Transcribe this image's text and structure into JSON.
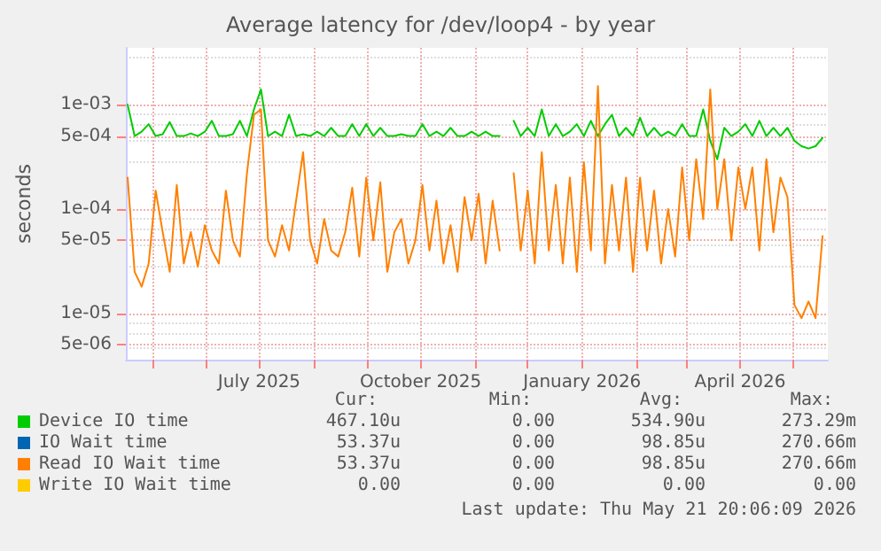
{
  "chart_data": {
    "type": "line",
    "title": "Average latency for /dev/loop4 - by year",
    "ylabel": "seconds",
    "log": "y",
    "grid": true,
    "legend": "bottom",
    "line_style": "solid",
    "xlim": [
      "2025-04-16",
      "2026-05-21"
    ],
    "xticks": [
      {
        "value": "2025-05-01",
        "label": null
      },
      {
        "value": "2025-06-01",
        "label": null
      },
      {
        "value": "2025-07-01",
        "label": "July 2025"
      },
      {
        "value": "2025-08-01",
        "label": null
      },
      {
        "value": "2025-09-01",
        "label": null
      },
      {
        "value": "2025-10-01",
        "label": "October 2025"
      },
      {
        "value": "2025-11-01",
        "label": null
      },
      {
        "value": "2025-12-01",
        "label": null
      },
      {
        "value": "2026-01-01",
        "label": "January 2026"
      },
      {
        "value": "2026-02-01",
        "label": null
      },
      {
        "value": "2026-03-01",
        "label": null
      },
      {
        "value": "2026-04-01",
        "label": "April 2026"
      },
      {
        "value": "2026-05-01",
        "label": null
      }
    ],
    "ylim": [
      3.6e-06,
      0.0035
    ],
    "yticks": [
      {
        "value": 5e-06,
        "label": "5e-06"
      },
      {
        "value": 1e-05,
        "label": "1e-05"
      },
      {
        "value": 5e-05,
        "label": "5e-05"
      },
      {
        "value": 0.0001,
        "label": "1e-04"
      },
      {
        "value": 0.0005,
        "label": "5e-04"
      },
      {
        "value": 0.001,
        "label": "1e-03"
      }
    ],
    "x": [
      "2025-04-17",
      "2025-04-21",
      "2025-04-25",
      "2025-04-29",
      "2025-05-03",
      "2025-05-07",
      "2025-05-11",
      "2025-05-15",
      "2025-05-19",
      "2025-05-23",
      "2025-05-27",
      "2025-05-31",
      "2025-06-04",
      "2025-06-08",
      "2025-06-12",
      "2025-06-16",
      "2025-06-20",
      "2025-06-24",
      "2025-06-28",
      "2025-07-02",
      "2025-07-06",
      "2025-07-10",
      "2025-07-14",
      "2025-07-18",
      "2025-07-22",
      "2025-07-26",
      "2025-07-30",
      "2025-08-03",
      "2025-08-07",
      "2025-08-11",
      "2025-08-15",
      "2025-08-19",
      "2025-08-23",
      "2025-08-27",
      "2025-08-31",
      "2025-09-04",
      "2025-09-08",
      "2025-09-12",
      "2025-09-16",
      "2025-09-20",
      "2025-09-24",
      "2025-09-28",
      "2025-10-02",
      "2025-10-06",
      "2025-10-10",
      "2025-10-14",
      "2025-10-18",
      "2025-10-22",
      "2025-10-26",
      "2025-10-30",
      "2025-11-03",
      "2025-11-07",
      "2025-11-11",
      "2025-11-15",
      "2025-11-19",
      "2025-11-23",
      "2025-11-27",
      "2025-12-01",
      "2025-12-05",
      "2025-12-09",
      "2025-12-13",
      "2025-12-17",
      "2025-12-21",
      "2025-12-25",
      "2025-12-29",
      "2026-01-02",
      "2026-01-06",
      "2026-01-10",
      "2026-01-14",
      "2026-01-18",
      "2026-01-22",
      "2026-01-26",
      "2026-01-30",
      "2026-02-03",
      "2026-02-07",
      "2026-02-11",
      "2026-02-15",
      "2026-02-19",
      "2026-02-23",
      "2026-02-27",
      "2026-03-03",
      "2026-03-07",
      "2026-03-11",
      "2026-03-15",
      "2026-03-19",
      "2026-03-23",
      "2026-03-27",
      "2026-03-31",
      "2026-04-04",
      "2026-04-08",
      "2026-04-12",
      "2026-04-16",
      "2026-04-20",
      "2026-04-24",
      "2026-04-28",
      "2026-05-02",
      "2026-05-06",
      "2026-05-10",
      "2026-05-14",
      "2026-05-18"
    ],
    "series": [
      {
        "name": "Device IO time",
        "color": "#00cc00",
        "values": [
          0.001,
          0.0005,
          0.00055,
          0.00065,
          0.0005,
          0.00052,
          0.00068,
          0.0005,
          0.0005,
          0.00053,
          0.0005,
          0.00055,
          0.0007,
          0.0005,
          0.0005,
          0.00052,
          0.0007,
          0.0005,
          0.0009,
          0.0014,
          0.0005,
          0.00055,
          0.0005,
          0.0008,
          0.0005,
          0.00052,
          0.0005,
          0.00055,
          0.0005,
          0.0006,
          0.0005,
          0.0005,
          0.00065,
          0.0005,
          0.00065,
          0.0005,
          0.0006,
          0.0005,
          0.0005,
          0.00052,
          0.0005,
          0.0005,
          0.00065,
          0.0005,
          0.00055,
          0.0005,
          0.0006,
          0.0005,
          0.0005,
          0.00055,
          0.0005,
          0.00055,
          0.0005,
          0.0005,
          null,
          0.0007,
          0.0005,
          0.0006,
          0.0005,
          0.0009,
          0.0005,
          0.00065,
          0.0005,
          0.00055,
          0.00065,
          0.0005,
          0.0007,
          0.0005,
          0.00065,
          0.0008,
          0.0005,
          0.0006,
          0.0005,
          0.00075,
          0.0005,
          0.0006,
          0.0005,
          0.00055,
          0.0005,
          0.00065,
          0.0005,
          0.0005,
          0.0009,
          0.00045,
          0.0003,
          0.0006,
          0.0005,
          0.00055,
          0.00065,
          0.0005,
          0.0007,
          0.0005,
          0.0006,
          0.0005,
          0.0006,
          0.00045,
          0.0004,
          0.00038,
          0.0004,
          0.00048
        ]
      },
      {
        "name": "IO Wait time",
        "color": "#0066b3",
        "values": [
          null,
          null,
          null,
          null,
          null,
          null,
          null,
          null,
          null,
          null,
          null,
          null,
          null,
          null,
          null,
          null,
          null,
          null,
          null,
          null,
          null,
          null,
          null,
          null,
          null,
          null,
          null,
          null,
          null,
          null,
          null,
          null,
          null,
          null,
          null,
          null,
          null,
          null,
          null,
          null,
          null,
          null,
          null,
          null,
          null,
          null,
          null,
          null,
          null,
          null,
          null,
          null,
          null,
          null,
          null,
          null,
          null,
          null,
          null,
          null,
          null,
          null,
          null,
          null,
          null,
          null,
          null,
          null,
          null,
          null,
          null,
          null,
          null,
          null,
          null,
          null,
          null,
          null,
          null,
          null,
          null,
          null,
          null,
          null,
          null,
          null,
          null,
          null,
          null,
          null,
          null,
          null,
          null,
          null,
          null,
          null,
          null,
          null,
          null,
          null
        ]
      },
      {
        "name": "Read IO Wait time",
        "color": "#ff8000",
        "values": [
          0.0002,
          2.5e-05,
          1.8e-05,
          3e-05,
          0.00015,
          6e-05,
          2.5e-05,
          0.00017,
          3e-05,
          6e-05,
          2.8e-05,
          7e-05,
          4e-05,
          3e-05,
          0.00015,
          5e-05,
          3.5e-05,
          0.00022,
          0.0008,
          0.0009,
          5e-05,
          3.5e-05,
          7e-05,
          4e-05,
          0.00012,
          0.00035,
          5e-05,
          3e-05,
          8e-05,
          4e-05,
          3.5e-05,
          6e-05,
          0.00016,
          3.5e-05,
          0.0002,
          5e-05,
          0.00018,
          2.5e-05,
          6e-05,
          8e-05,
          3e-05,
          5e-05,
          0.00017,
          4e-05,
          0.00012,
          3e-05,
          7e-05,
          2.5e-05,
          0.00013,
          5e-05,
          0.00014,
          3e-05,
          0.00012,
          4e-05,
          null,
          0.00022,
          4e-05,
          0.00015,
          3e-05,
          0.00035,
          4e-05,
          0.00017,
          3e-05,
          0.0002,
          2.5e-05,
          0.00028,
          4e-05,
          0.0015,
          3e-05,
          0.00017,
          4e-05,
          0.0002,
          2.5e-05,
          0.0002,
          4e-05,
          0.00015,
          3e-05,
          0.0001,
          3.5e-05,
          0.00025,
          5e-05,
          0.0003,
          8e-05,
          0.0014,
          0.0001,
          0.0003,
          5e-05,
          0.00025,
          0.0001,
          0.00025,
          4e-05,
          0.0003,
          6e-05,
          0.0002,
          0.00013,
          1.2e-05,
          9e-06,
          1.3e-05,
          9e-06,
          5.5e-05
        ]
      },
      {
        "name": "Write IO Wait time",
        "color": "#ffcc00",
        "values": [
          null,
          null,
          null,
          null,
          null,
          null,
          null,
          null,
          null,
          null,
          null,
          null,
          null,
          null,
          null,
          null,
          null,
          null,
          null,
          null,
          null,
          null,
          null,
          null,
          null,
          null,
          null,
          null,
          null,
          null,
          null,
          null,
          null,
          null,
          null,
          null,
          null,
          null,
          null,
          null,
          null,
          null,
          null,
          null,
          null,
          null,
          null,
          null,
          null,
          null,
          null,
          null,
          null,
          null,
          null,
          null,
          null,
          null,
          null,
          null,
          null,
          null,
          null,
          null,
          null,
          null,
          null,
          null,
          null,
          null,
          null,
          null,
          null,
          null,
          null,
          null,
          null,
          null,
          null,
          null,
          null,
          null,
          null,
          null,
          null,
          null,
          null,
          null,
          null,
          null,
          null,
          null,
          null,
          null,
          null,
          null,
          null,
          null,
          null,
          null
        ]
      }
    ],
    "annotations": [
      "Cur:",
      "Min:",
      "Avg:",
      "Max:",
      "467.10u",
      "0.00",
      "534.90u",
      "273.29m",
      "53.37u",
      "0.00",
      "98.85u",
      "270.66m",
      "53.37u",
      "0.00",
      "98.85u",
      "270.66m",
      "0.00",
      "0.00",
      "0.00",
      "0.00",
      "Last update: Thu May 21 20:06:09 2026"
    ]
  }
}
